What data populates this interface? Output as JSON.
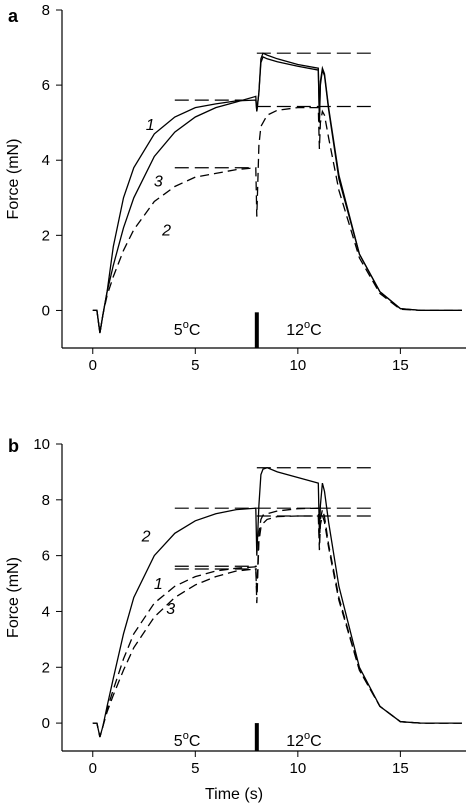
{
  "chart_data": [
    {
      "type": "line",
      "panel_label": "a",
      "xlabel": "",
      "ylabel": "Force (mN)",
      "xlim": [
        -1.5,
        18.2
      ],
      "ylim": [
        -1,
        8
      ],
      "xticks": [
        0,
        5,
        10,
        15
      ],
      "yticks": [
        0,
        2,
        4,
        6,
        8
      ],
      "temperature_labels": [
        {
          "text": "5",
          "sup": "o",
          "unit": "C",
          "x": 4.6,
          "y": -0.5
        },
        {
          "text": "12",
          "sup": "o",
          "unit": "C",
          "x": 10.3,
          "y": -0.5
        }
      ],
      "marker_x": 8.0,
      "marker_y_range": [
        -1,
        -0.05
      ],
      "reference_lines": [
        {
          "x": [
            8.0,
            13.8
          ],
          "y": 6.85
        },
        {
          "x": [
            4.0,
            7.3
          ],
          "y": 5.6
        },
        {
          "x": [
            8.0,
            13.8
          ],
          "y": 5.43
        },
        {
          "x": [
            4.0,
            7.9
          ],
          "y": 3.8
        }
      ],
      "curve_labels": [
        {
          "text": "1",
          "x": 2.8,
          "y": 4.8
        },
        {
          "text": "3",
          "x": 3.2,
          "y": 3.3
        },
        {
          "text": "2",
          "x": 3.6,
          "y": 2.0
        }
      ],
      "series": [
        {
          "style": "solid",
          "x": [
            0,
            0.2,
            0.35,
            0.5,
            0.7,
            1,
            1.5,
            2,
            3,
            4,
            5,
            6,
            7,
            7.95,
            8.0,
            8.1,
            8.2,
            8.3,
            8.5,
            9,
            10,
            11,
            11.05,
            11.1,
            11.2,
            11.3,
            11.5,
            12,
            13,
            14,
            15,
            16,
            17,
            18
          ],
          "values": [
            0,
            0,
            -0.6,
            -0.1,
            0.5,
            1.7,
            3.0,
            3.8,
            4.7,
            5.15,
            5.4,
            5.5,
            5.58,
            5.6,
            5.3,
            5.8,
            6.7,
            6.85,
            6.8,
            6.7,
            6.55,
            6.45,
            5.1,
            6.1,
            6.45,
            6.3,
            5.4,
            3.6,
            1.5,
            0.5,
            0.05,
            0,
            0,
            0
          ]
        },
        {
          "style": "solid",
          "x": [
            0,
            0.2,
            0.35,
            0.5,
            0.7,
            1,
            1.5,
            2,
            3,
            4,
            5,
            6,
            7,
            7.95,
            8.0,
            8.1,
            8.2,
            8.3,
            8.5,
            9,
            10,
            11,
            11.05,
            11.1,
            11.2,
            11.3,
            11.5,
            12,
            13,
            14,
            15,
            16,
            17,
            18
          ],
          "values": [
            0,
            0,
            -0.6,
            -0.1,
            0.5,
            1.2,
            2.2,
            3.0,
            4.1,
            4.75,
            5.15,
            5.4,
            5.55,
            5.7,
            5.3,
            5.8,
            6.6,
            6.75,
            6.7,
            6.62,
            6.5,
            6.4,
            5.0,
            6.0,
            6.4,
            6.25,
            5.35,
            3.5,
            1.5,
            0.5,
            0.05,
            0,
            0,
            0
          ]
        },
        {
          "style": "dashed",
          "x": [
            0,
            0.2,
            0.35,
            0.5,
            0.7,
            1,
            1.5,
            2,
            3,
            4,
            5,
            6,
            7,
            7.95,
            8.0,
            8.1,
            8.2,
            8.3,
            8.5,
            9,
            10,
            11,
            11.05,
            11.1,
            11.2,
            11.3,
            11.5,
            12,
            13,
            14,
            15,
            16,
            17,
            18
          ],
          "values": [
            0,
            0,
            -0.6,
            -0.1,
            0.4,
            0.9,
            1.6,
            2.15,
            2.9,
            3.3,
            3.55,
            3.65,
            3.75,
            3.8,
            2.5,
            4.4,
            4.9,
            5.0,
            5.2,
            5.33,
            5.4,
            5.4,
            4.3,
            5.0,
            5.3,
            5.2,
            4.6,
            3.2,
            1.4,
            0.45,
            0.03,
            0,
            0,
            0
          ]
        }
      ]
    },
    {
      "type": "line",
      "panel_label": "b",
      "xlabel": "Time (s)",
      "ylabel": "Force (mN)",
      "xlim": [
        -1.5,
        18.2
      ],
      "ylim": [
        -1,
        10
      ],
      "xticks": [
        0,
        5,
        10,
        15
      ],
      "yticks": [
        0,
        2,
        4,
        6,
        8,
        10
      ],
      "temperature_labels": [
        {
          "text": "5",
          "sup": "o",
          "unit": "C",
          "x": 4.6,
          "y": -0.6
        },
        {
          "text": "12",
          "sup": "o",
          "unit": "C",
          "x": 10.3,
          "y": -0.6
        }
      ],
      "marker_x": 8.0,
      "marker_y_range": [
        -1,
        0.0
      ],
      "reference_lines": [
        {
          "x": [
            8.0,
            13.8
          ],
          "y": 9.15
        },
        {
          "x": [
            4.0,
            8.0
          ],
          "y": 7.7
        },
        {
          "x": [
            8.0,
            13.8
          ],
          "y": 7.7
        },
        {
          "x": [
            8.0,
            13.8
          ],
          "y": 7.42
        },
        {
          "x": [
            4.0,
            8.0
          ],
          "y": 5.62
        },
        {
          "x": [
            4.0,
            8.0
          ],
          "y": 5.52
        }
      ],
      "curve_labels": [
        {
          "text": "2",
          "x": 2.6,
          "y": 6.5
        },
        {
          "text": "1",
          "x": 3.2,
          "y": 4.8
        },
        {
          "text": "3",
          "x": 3.8,
          "y": 3.9
        }
      ],
      "series": [
        {
          "style": "solid",
          "x": [
            0,
            0.2,
            0.35,
            0.5,
            0.7,
            1,
            1.5,
            2,
            3,
            4,
            5,
            6,
            7,
            7.95,
            8.0,
            8.1,
            8.2,
            8.3,
            8.5,
            9,
            10,
            11,
            11.05,
            11.1,
            11.2,
            11.3,
            11.5,
            12,
            13,
            14,
            15,
            16,
            17,
            18
          ],
          "values": [
            0,
            0,
            -0.5,
            -0.1,
            0.6,
            1.6,
            3.2,
            4.5,
            6.0,
            6.8,
            7.25,
            7.5,
            7.65,
            7.7,
            6.0,
            7.8,
            8.9,
            9.1,
            9.15,
            9.0,
            8.8,
            8.6,
            6.8,
            7.8,
            8.6,
            8.3,
            7.2,
            4.9,
            2.0,
            0.6,
            0.05,
            0,
            0,
            0
          ]
        },
        {
          "style": "dashed",
          "x": [
            0,
            0.2,
            0.35,
            0.5,
            0.7,
            1,
            1.5,
            2,
            3,
            4,
            5,
            6,
            7,
            7.95,
            8.0,
            8.1,
            8.2,
            8.3,
            8.5,
            9,
            10,
            11,
            11.05,
            11.1,
            11.2,
            11.3,
            11.5,
            12,
            13,
            14,
            15,
            16,
            17,
            18
          ],
          "values": [
            0,
            0,
            -0.5,
            -0.1,
            0.5,
            1.2,
            2.3,
            3.2,
            4.3,
            4.9,
            5.25,
            5.45,
            5.55,
            5.6,
            4.3,
            6.5,
            7.0,
            7.15,
            7.3,
            7.4,
            7.42,
            7.42,
            6.2,
            7.1,
            7.45,
            7.2,
            6.3,
            4.4,
            1.9,
            0.6,
            0.05,
            0,
            0,
            0
          ]
        },
        {
          "style": "dashed",
          "x": [
            0,
            0.2,
            0.35,
            0.5,
            0.7,
            1,
            1.5,
            2,
            3,
            4,
            5,
            6,
            7,
            7.95,
            8.0,
            8.1,
            8.2,
            8.3,
            8.5,
            9,
            10,
            11,
            11.05,
            11.1,
            11.2,
            11.3,
            11.5,
            12,
            13,
            14,
            15,
            16,
            17,
            18
          ],
          "values": [
            0,
            0,
            -0.5,
            -0.1,
            0.4,
            1.0,
            1.9,
            2.7,
            3.8,
            4.5,
            4.95,
            5.25,
            5.45,
            5.52,
            4.6,
            6.8,
            7.3,
            7.45,
            7.5,
            7.6,
            7.68,
            7.7,
            6.4,
            7.3,
            7.65,
            7.4,
            6.4,
            4.5,
            1.9,
            0.6,
            0.05,
            0,
            0,
            0
          ]
        }
      ]
    }
  ]
}
